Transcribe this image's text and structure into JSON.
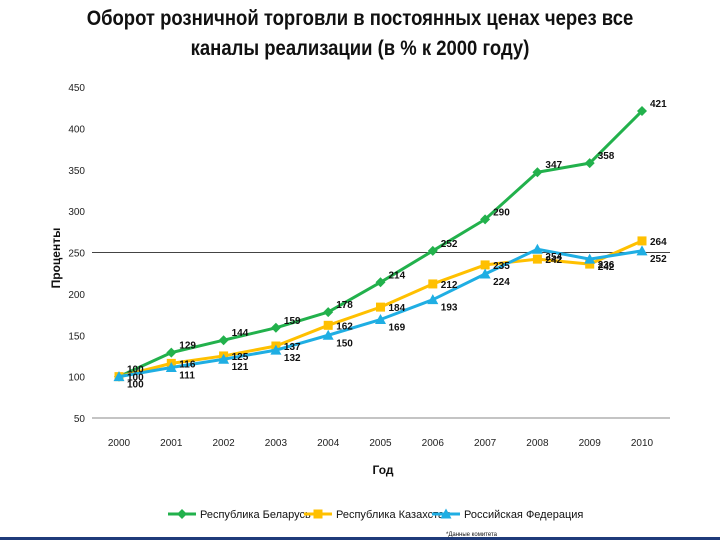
{
  "chart_data": {
    "type": "line",
    "title_lines": [
      "Оборот розничной торговли в постоянных ценах через все",
      "каналы реализации (в % к 2000 году)"
    ],
    "xlabel": "Год",
    "ylabel": "Проценты",
    "ylim": [
      50,
      450
    ],
    "yticks": [
      50,
      100,
      150,
      200,
      250,
      300,
      350,
      400,
      450
    ],
    "grid": "horizontal, at 250 only",
    "legend_position": "bottom",
    "categories": [
      "2000",
      "2001",
      "2002",
      "2003",
      "2004",
      "2005",
      "2006",
      "2007",
      "2008",
      "2009",
      "2010"
    ],
    "series": [
      {
        "name": "Республика Беларусь",
        "color": "#22b14c",
        "marker": "diamond",
        "values": [
          100,
          129,
          144,
          159,
          178,
          214,
          252,
          290,
          347,
          358,
          421
        ]
      },
      {
        "name": "Республика Казахстан",
        "color": "#ffc000",
        "marker": "square",
        "values": [
          100,
          116,
          125,
          137,
          162,
          184,
          212,
          235,
          242,
          236,
          264
        ]
      },
      {
        "name": "Российская Федерация",
        "color": "#1faee3",
        "marker": "triangle",
        "values": [
          100,
          111,
          121,
          132,
          150,
          169,
          193,
          224,
          254,
          242,
          252
        ]
      }
    ],
    "footnote": "*Данные комитета"
  }
}
